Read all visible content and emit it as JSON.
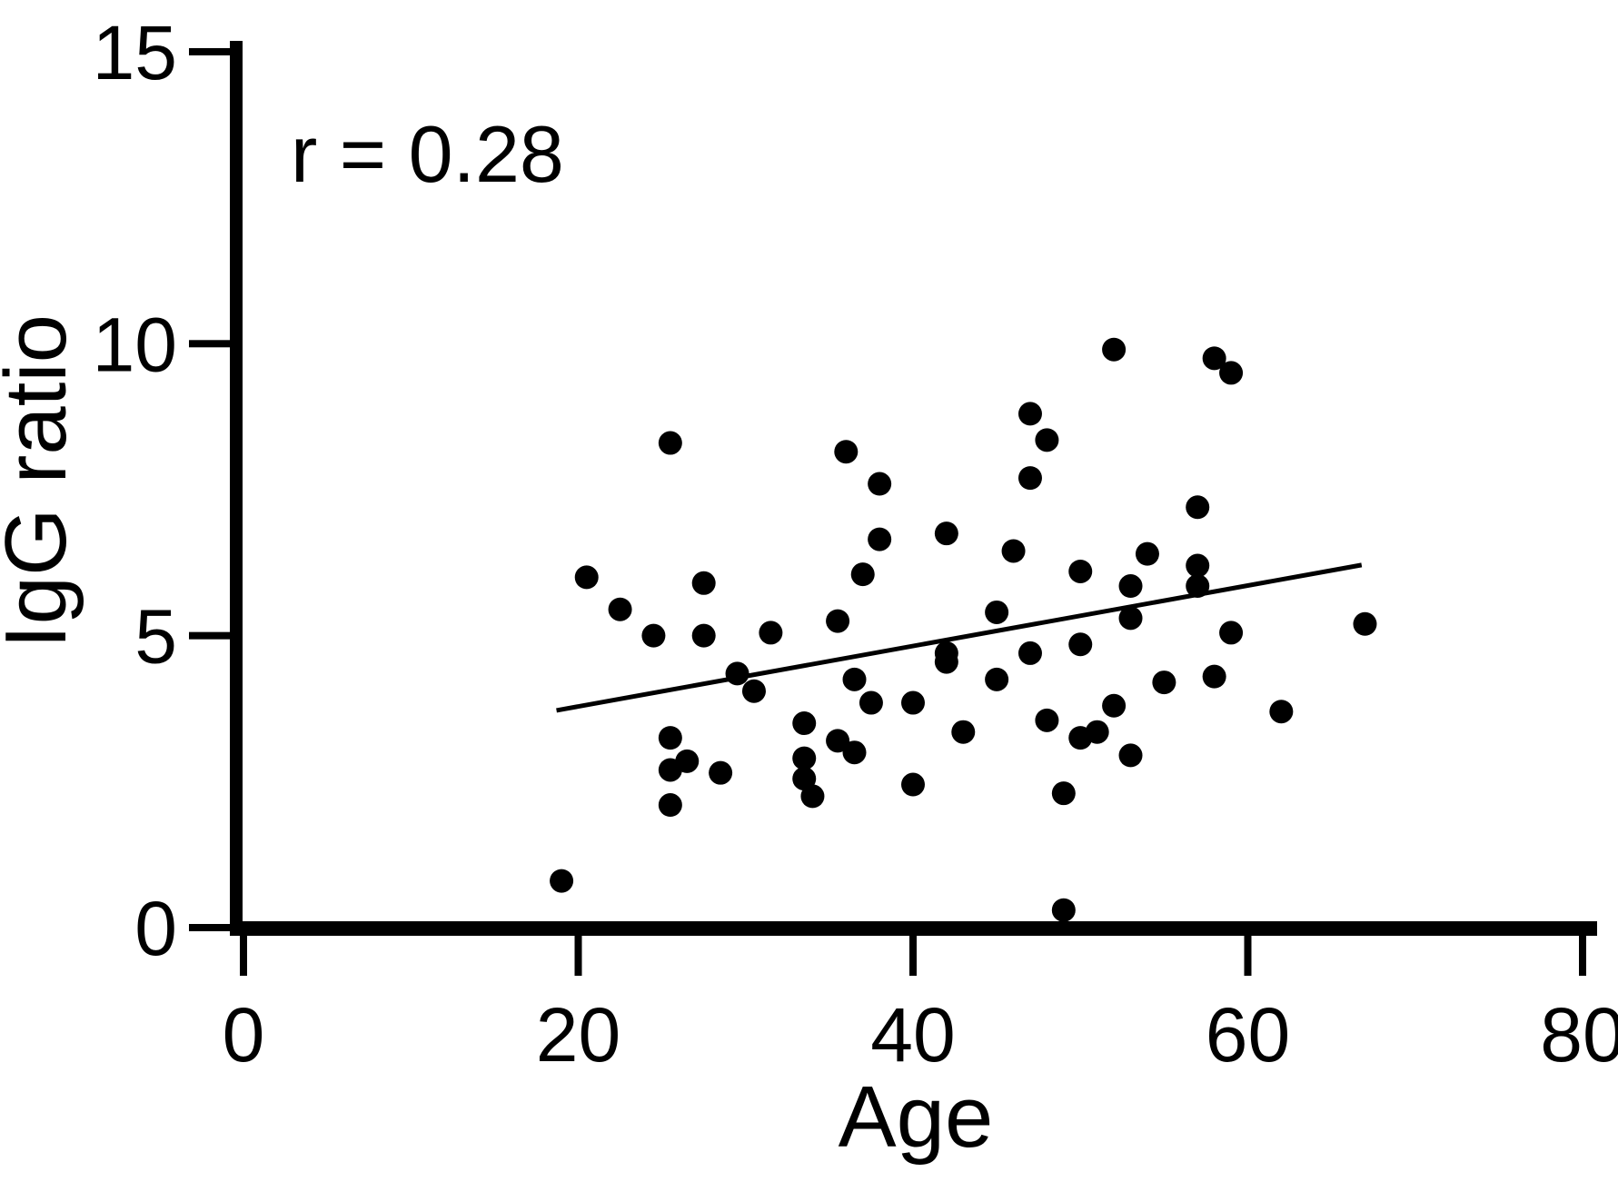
{
  "figure": {
    "annotation": "r = 0.28",
    "xlabel": "Age",
    "ylabel": "IgG ratio"
  },
  "chart_data": {
    "type": "scatter",
    "title": "",
    "xlabel": "Age",
    "ylabel": "IgG ratio",
    "annotation": "r = 0.28",
    "xlim": [
      0,
      80
    ],
    "ylim": [
      0,
      15
    ],
    "x_ticks": [
      "0",
      "20",
      "40",
      "60",
      "80"
    ],
    "y_ticks": [
      "0",
      "5",
      "10",
      "15"
    ],
    "x_tick_values": [
      0,
      20,
      40,
      60,
      80
    ],
    "y_tick_values": [
      0,
      5,
      10,
      15
    ],
    "grid": false,
    "legend": "none",
    "marker_color": "#000000",
    "line_color": "#000000",
    "points": [
      [
        19,
        0.8
      ],
      [
        20.5,
        6.0
      ],
      [
        22.5,
        5.45
      ],
      [
        24.5,
        5.0
      ],
      [
        25.5,
        8.3
      ],
      [
        25.5,
        3.25
      ],
      [
        25.5,
        2.7
      ],
      [
        25.5,
        2.1
      ],
      [
        26.5,
        2.85
      ],
      [
        27.5,
        5.9
      ],
      [
        27.5,
        5.0
      ],
      [
        28.5,
        2.65
      ],
      [
        29.5,
        4.35
      ],
      [
        30.5,
        4.05
      ],
      [
        31.5,
        5.05
      ],
      [
        33.5,
        3.5
      ],
      [
        33.5,
        2.9
      ],
      [
        33.5,
        2.55
      ],
      [
        34,
        2.25
      ],
      [
        35.5,
        5.25
      ],
      [
        35.5,
        3.2
      ],
      [
        36,
        8.15
      ],
      [
        36.5,
        4.25
      ],
      [
        36.5,
        3.0
      ],
      [
        37,
        6.05
      ],
      [
        37.5,
        3.85
      ],
      [
        38,
        7.6
      ],
      [
        38,
        6.65
      ],
      [
        40,
        3.85
      ],
      [
        40,
        2.45
      ],
      [
        42,
        6.75
      ],
      [
        42,
        4.7
      ],
      [
        42,
        4.55
      ],
      [
        43,
        3.35
      ],
      [
        45,
        5.4
      ],
      [
        45,
        4.25
      ],
      [
        46,
        6.45
      ],
      [
        47,
        8.8
      ],
      [
        47,
        7.7
      ],
      [
        47,
        4.7
      ],
      [
        48,
        8.35
      ],
      [
        48,
        3.55
      ],
      [
        49,
        2.3
      ],
      [
        49,
        0.3
      ],
      [
        50,
        6.1
      ],
      [
        50,
        4.85
      ],
      [
        50,
        3.25
      ],
      [
        51,
        3.35
      ],
      [
        52,
        9.9
      ],
      [
        52,
        3.8
      ],
      [
        53,
        5.85
      ],
      [
        53,
        5.3
      ],
      [
        53,
        2.95
      ],
      [
        54,
        6.4
      ],
      [
        55,
        4.2
      ],
      [
        57,
        7.2
      ],
      [
        57,
        6.2
      ],
      [
        57,
        5.85
      ],
      [
        58,
        9.75
      ],
      [
        58,
        4.3
      ],
      [
        59,
        9.5
      ],
      [
        59,
        5.05
      ],
      [
        62,
        3.7
      ],
      [
        67,
        5.2
      ]
    ],
    "trend_line": {
      "x1": 18.7,
      "y1": 3.72,
      "x2": 66.8,
      "y2": 6.21
    }
  }
}
